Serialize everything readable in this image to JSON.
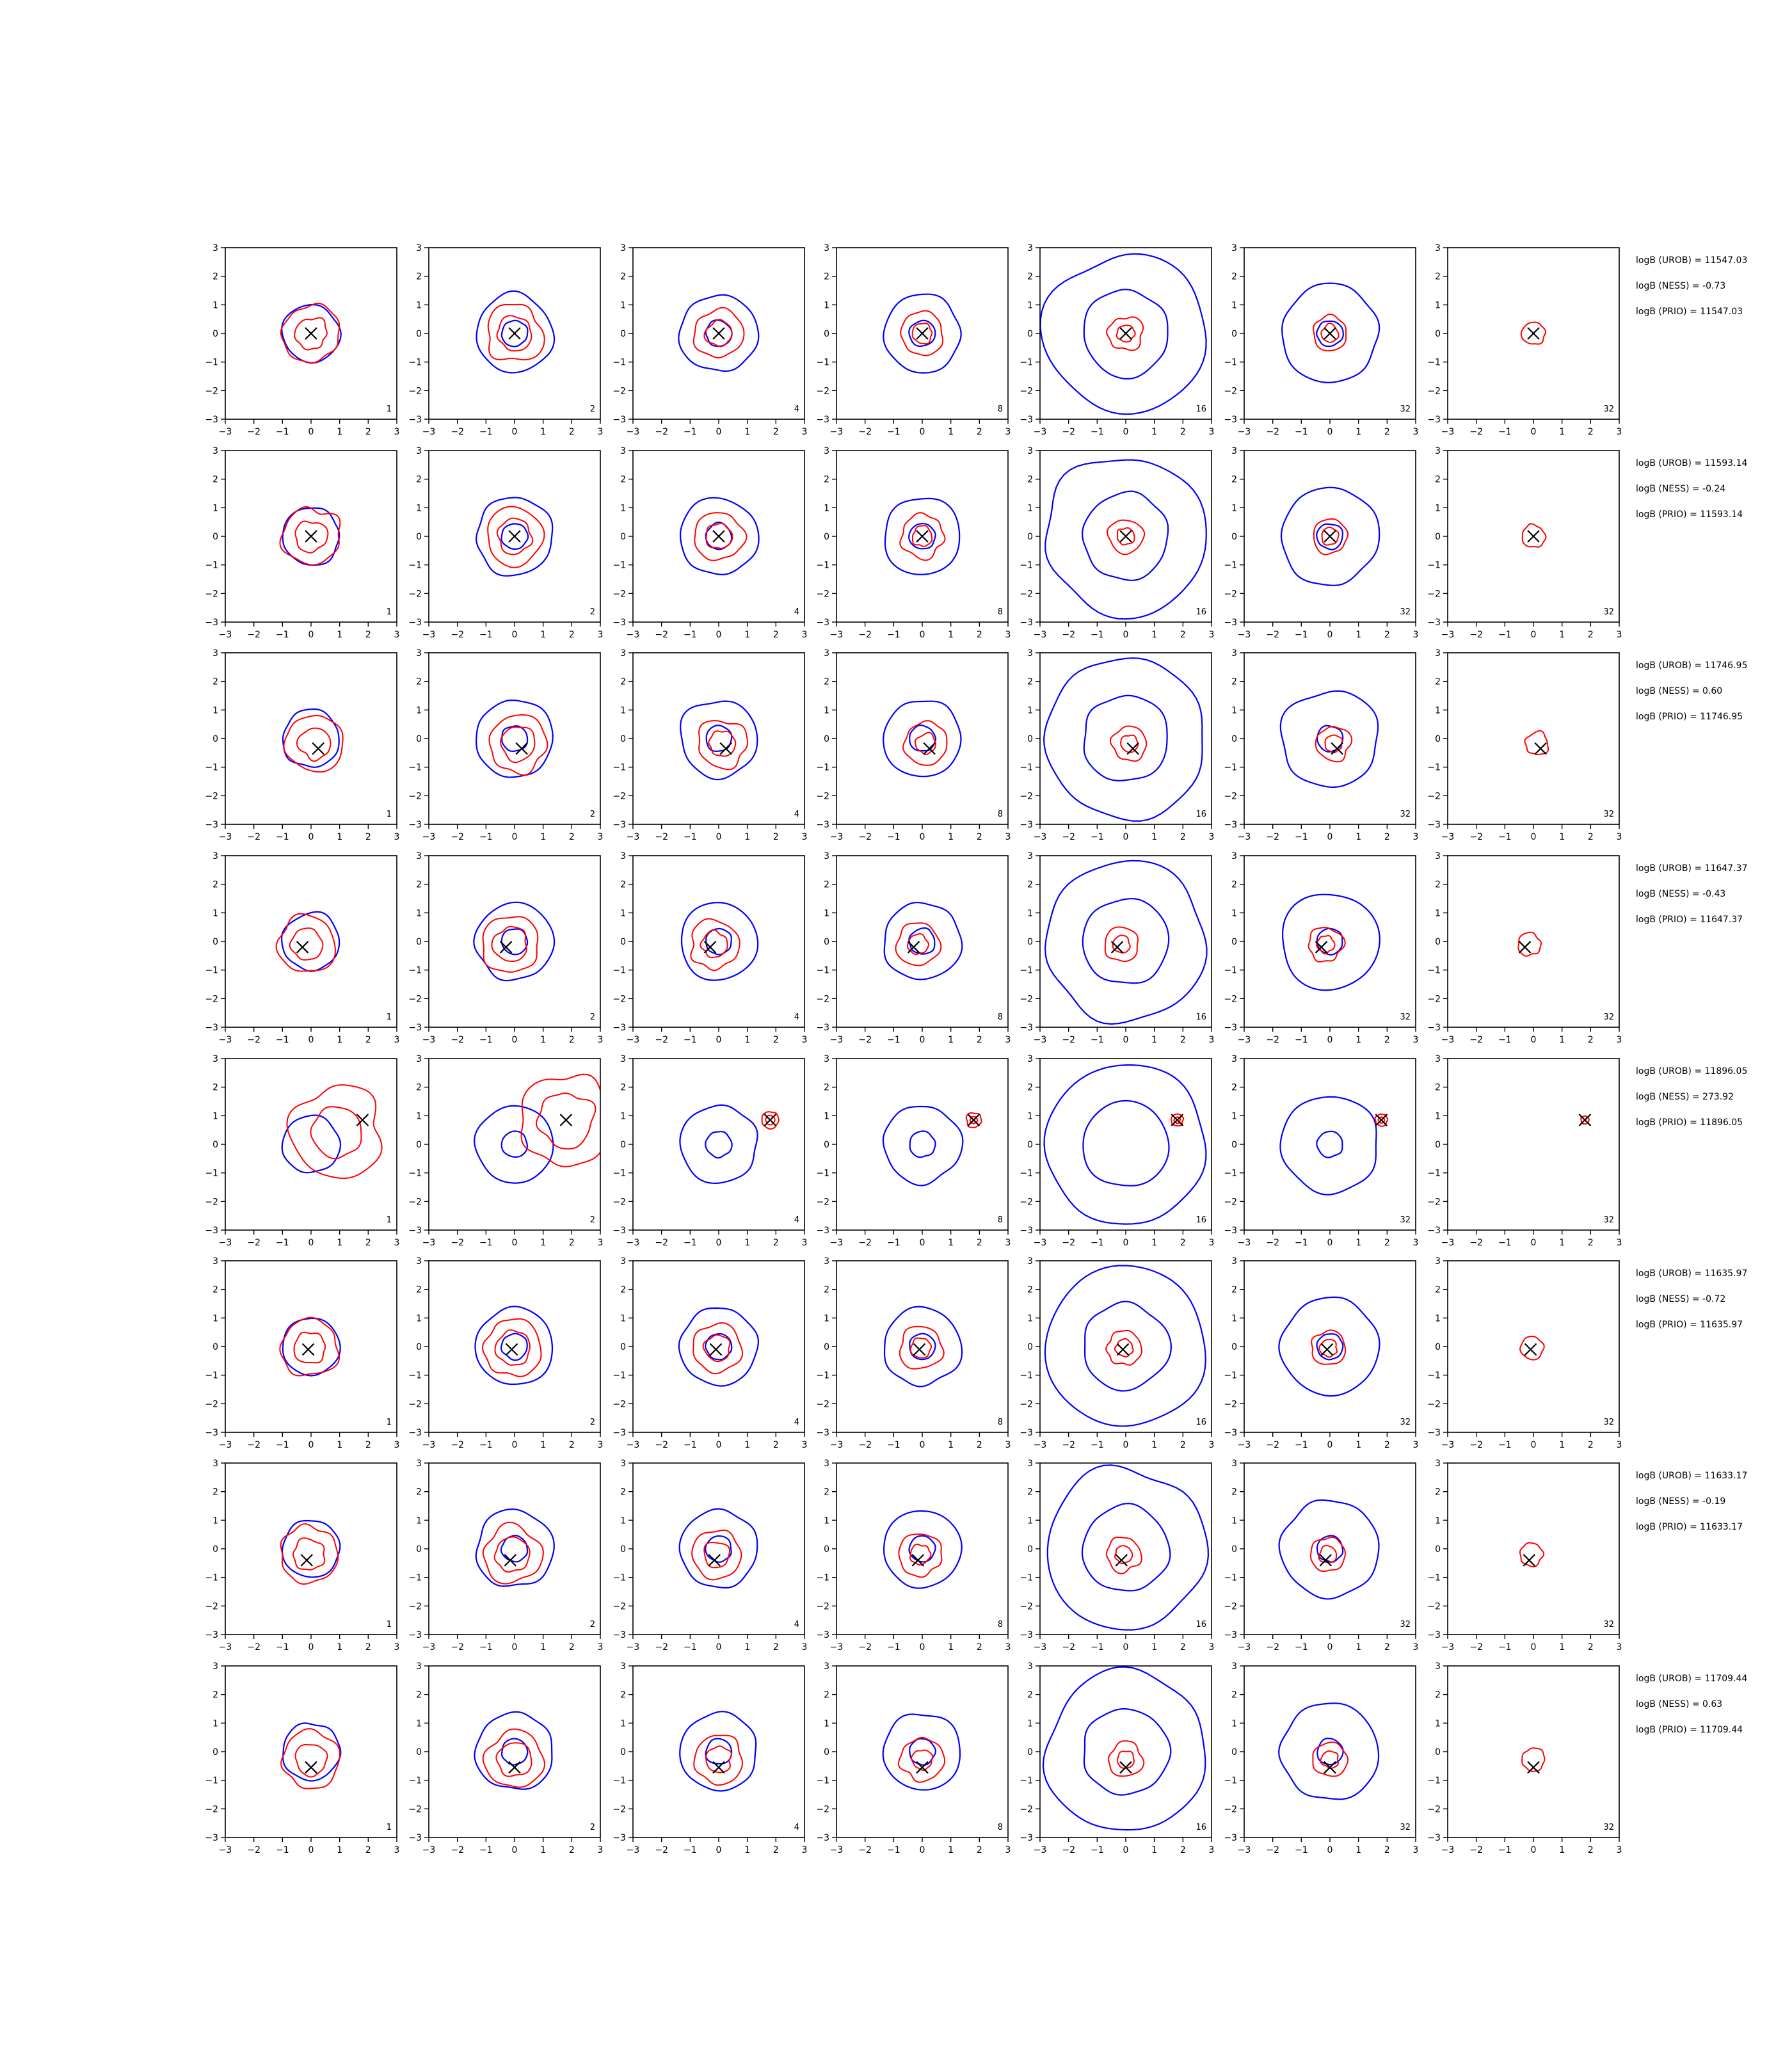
{
  "chart_data": {
    "type": "contour-grid",
    "xlim": [
      -3,
      3
    ],
    "ylim": [
      -3,
      3
    ],
    "ticks": [
      "−3",
      "−2",
      "−1",
      "0",
      "1",
      "2",
      "3"
    ],
    "tick_values": [
      -3,
      -2,
      -1,
      0,
      1,
      2,
      3
    ],
    "colors": {
      "blue": "#0000ff",
      "red": "#ff0000",
      "marker": "#000000"
    },
    "columns": [
      {
        "annotation": "1"
      },
      {
        "annotation": "2"
      },
      {
        "annotation": "4"
      },
      {
        "annotation": "8"
      },
      {
        "annotation": "16"
      },
      {
        "annotation": "32"
      },
      {
        "annotation": "32"
      }
    ],
    "rows": [
      {
        "marker": [
          0.0,
          0.0
        ],
        "urob": "logB (UROB) = 11547.03",
        "ness": "logB (NESS) = -0.73",
        "prio": "logB (PRIO) = 11547.03"
      },
      {
        "marker": [
          0.0,
          0.0
        ],
        "urob": "logB (UROB) = 11593.14",
        "ness": "logB (NESS) = -0.24",
        "prio": "logB (PRIO) = 11593.14"
      },
      {
        "marker": [
          0.25,
          -0.35
        ],
        "urob": "logB (UROB) = 11746.95",
        "ness": "logB (NESS) = 0.60",
        "prio": "logB (PRIO) = 11746.95"
      },
      {
        "marker": [
          -0.3,
          -0.2
        ],
        "urob": "logB (UROB) = 11647.37",
        "ness": "logB (NESS) = -0.43",
        "prio": "logB (PRIO) = 11647.37"
      },
      {
        "marker": [
          1.8,
          0.85
        ],
        "urob": "logB (UROB) = 11896.05",
        "ness": "logB (NESS) = 273.92",
        "prio": "logB (PRIO) = 11896.05"
      },
      {
        "marker": [
          -0.1,
          -0.1
        ],
        "urob": "logB (UROB) = 11635.97",
        "ness": "logB (NESS) = -0.72",
        "prio": "logB (PRIO) = 11635.97"
      },
      {
        "marker": [
          -0.15,
          -0.4
        ],
        "urob": "logB (UROB) = 11633.17",
        "ness": "logB (NESS) = -0.19",
        "prio": "logB (PRIO) = 11633.17"
      },
      {
        "marker": [
          0.0,
          -0.55
        ],
        "urob": "logB (UROB) = 11709.44",
        "ness": "logB (NESS) = 0.63",
        "prio": "logB (PRIO) = 11709.44"
      }
    ],
    "blue_radii": [
      [
        [
          1.0
        ]
      ],
      [
        [
          0.45
        ],
        [
          1.35
        ]
      ],
      [
        [
          0.45
        ],
        [
          1.35
        ]
      ],
      [
        [
          0.45
        ],
        [
          1.35
        ]
      ],
      [
        [
          1.5
        ],
        [
          2.8
        ]
      ],
      [
        [
          0.45
        ],
        [
          1.7
        ]
      ],
      []
    ],
    "red_radii": [
      [
        0.55,
        1.0
      ],
      [
        0.6,
        1.0
      ],
      [
        0.45,
        0.85
      ],
      [
        0.35,
        0.75
      ],
      [
        0.3,
        0.6
      ],
      [
        0.3,
        0.6
      ],
      [
        0.4
      ]
    ]
  }
}
